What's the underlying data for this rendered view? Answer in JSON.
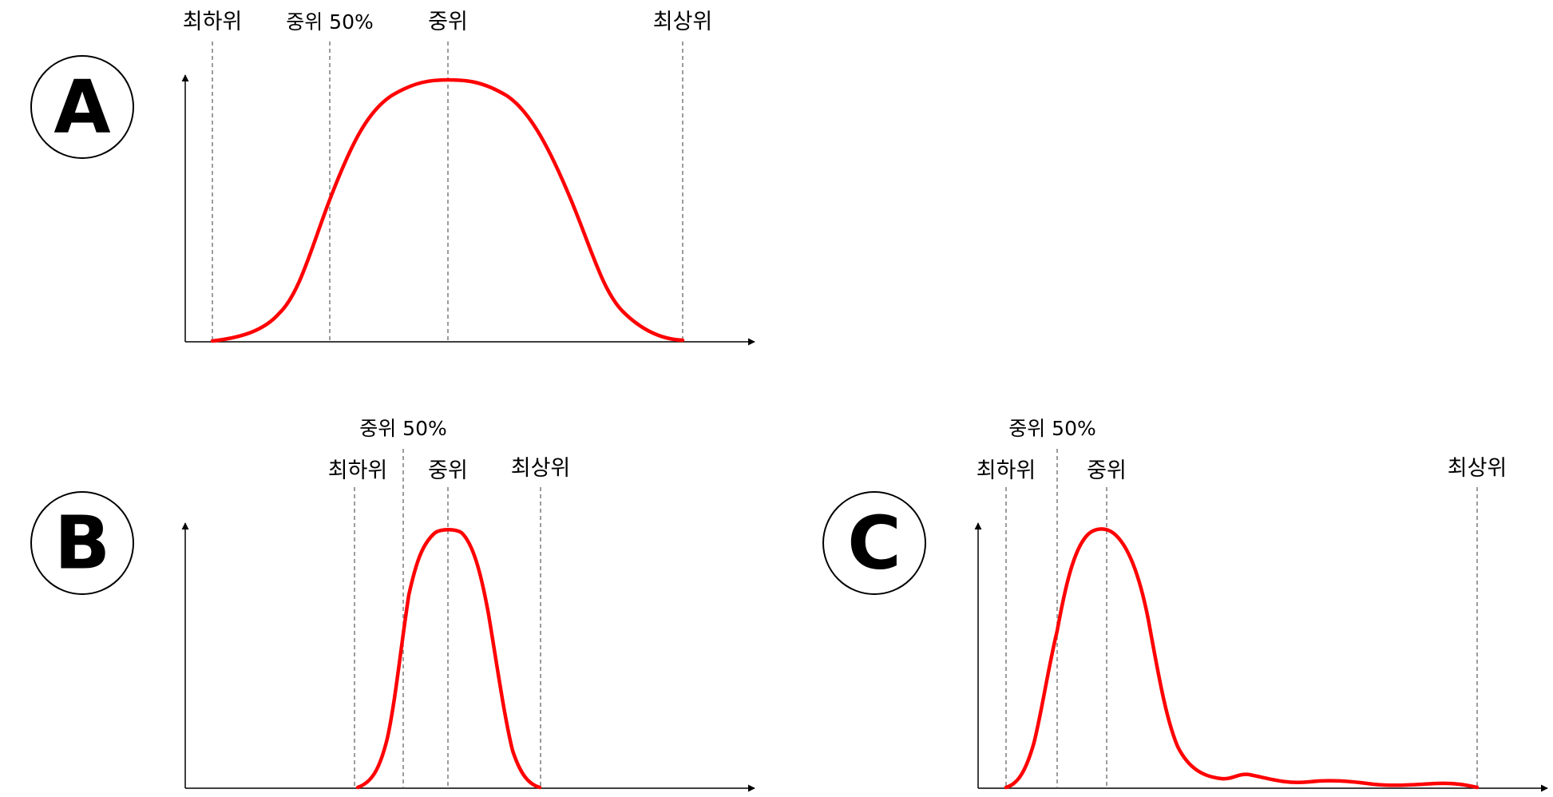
{
  "colors": {
    "curve": "#ff0000",
    "axis": "#000000",
    "guide": "#666666",
    "background": "#ffffff"
  },
  "panels": [
    {
      "id": "a",
      "badge": "A",
      "markers": [
        {
          "key": "lowest",
          "label": "최하위"
        },
        {
          "key": "mid50",
          "label": "중위 50%"
        },
        {
          "key": "median",
          "label": "중위"
        },
        {
          "key": "highest",
          "label": "최상위"
        }
      ]
    },
    {
      "id": "b",
      "badge": "B",
      "markers": [
        {
          "key": "mid50",
          "label": "중위 50%"
        },
        {
          "key": "lowest",
          "label": "최하위"
        },
        {
          "key": "median",
          "label": "중위"
        },
        {
          "key": "highest",
          "label": "최상위"
        }
      ]
    },
    {
      "id": "c",
      "badge": "C",
      "markers": [
        {
          "key": "mid50",
          "label": "중위 50%"
        },
        {
          "key": "lowest",
          "label": "최하위"
        },
        {
          "key": "median",
          "label": "중위"
        },
        {
          "key": "highest",
          "label": "최상위"
        }
      ]
    }
  ]
}
